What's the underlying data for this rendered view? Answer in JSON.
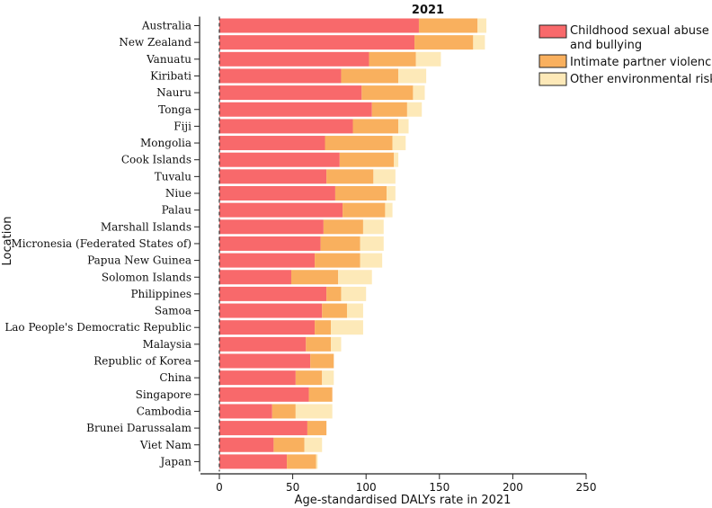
{
  "chart_data": {
    "type": "bar",
    "orientation": "horizontal",
    "stacked": true,
    "title": "2021",
    "xlabel": "Age-standardised DALYs rate in 2021",
    "ylabel": "Location",
    "xlim": [
      0,
      250
    ],
    "xticks": [
      0,
      50,
      100,
      150,
      200,
      250
    ],
    "legend_position": "top-right",
    "categories": [
      "Australia",
      "New Zealand",
      "Vanuatu",
      "Kiribati",
      "Nauru",
      "Tonga",
      "Fiji",
      "Mongolia",
      "Cook Islands",
      "Tuvalu",
      "Niue",
      "Palau",
      "Marshall Islands",
      "Micronesia (Federated States of)",
      "Papua New Guinea",
      "Solomon Islands",
      "Philippines",
      "Samoa",
      "Lao People's Democratic Republic",
      "Malaysia",
      "Republic of Korea",
      "China",
      "Singapore",
      "Cambodia",
      "Brunei Darussalam",
      "Viet Nam",
      "Japan"
    ],
    "series": [
      {
        "name": "Childhood sexual abuse and bullying",
        "legend_lines": [
          "Childhood sexual abuse",
          "and bullying"
        ],
        "color": "#f8696b",
        "values": [
          136,
          133,
          102,
          83,
          97,
          104,
          91,
          72,
          82,
          73,
          79,
          84,
          71,
          69,
          65,
          49,
          73,
          70,
          65,
          59,
          62,
          52,
          61,
          36,
          60,
          37,
          46
        ]
      },
      {
        "name": "Intimate partner violence",
        "legend_lines": [
          "Intimate partner violence"
        ],
        "color": "#f9b05e",
        "values": [
          40,
          40,
          32,
          39,
          35,
          24,
          31,
          46,
          37,
          32,
          35,
          29,
          27,
          27,
          31,
          32,
          10,
          17,
          11,
          17,
          16,
          18,
          16,
          16,
          13,
          21,
          20
        ]
      },
      {
        "name": "Other environmental risks",
        "legend_lines": [
          "Other environmental risks"
        ],
        "color": "#fde9b8",
        "values": [
          6,
          8,
          17,
          19,
          8,
          10,
          7,
          9,
          3,
          15,
          6,
          5,
          14,
          16,
          15,
          23,
          17,
          11,
          22,
          7,
          0,
          8,
          0,
          25,
          0,
          12,
          1
        ]
      }
    ]
  }
}
